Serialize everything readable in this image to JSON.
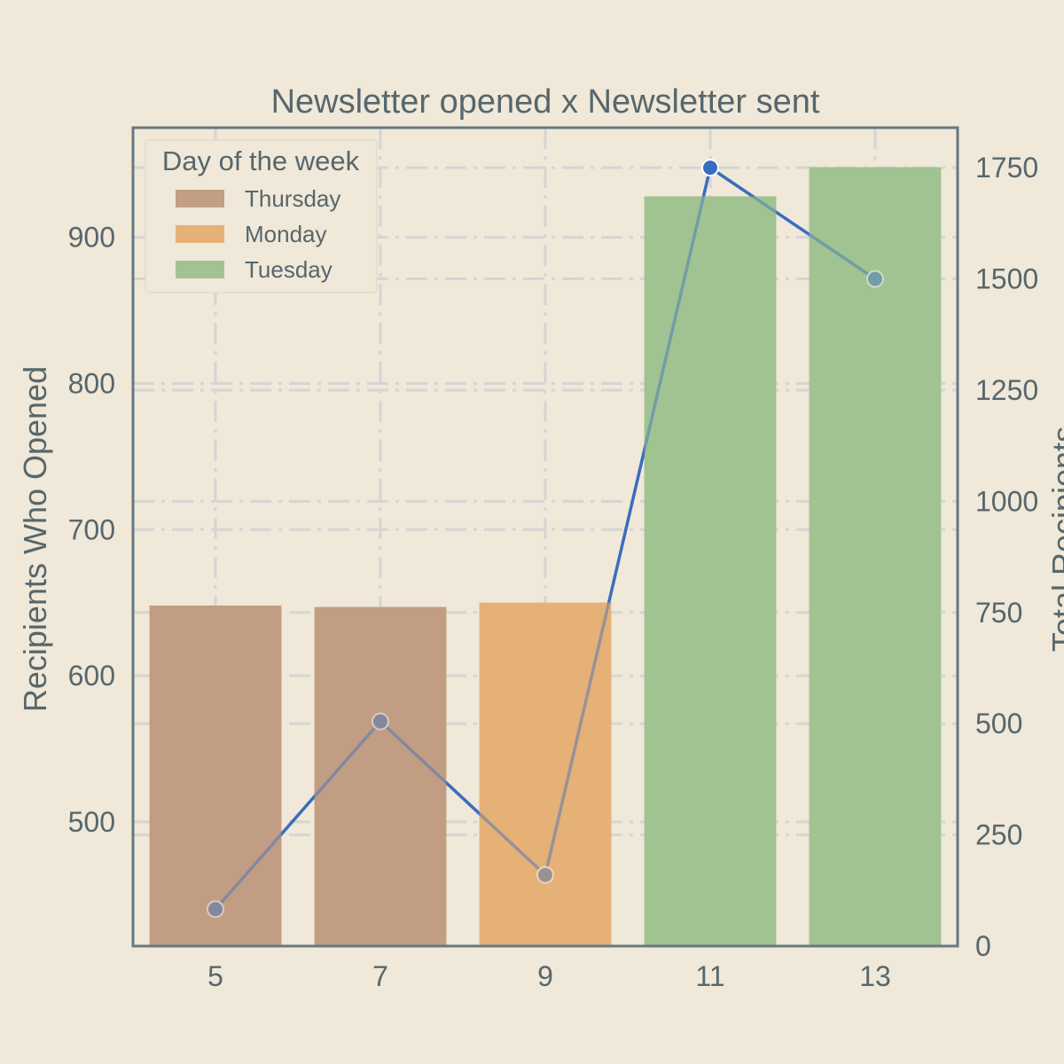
{
  "chart_data": {
    "type": "bar",
    "title": "Newsletter opened x Newsletter sent",
    "categories": [
      "5",
      "7",
      "9",
      "11",
      "13"
    ],
    "ylabel": "Recipients Who Opened",
    "y2label": "Total Recipients",
    "ylim": [
      415,
      975
    ],
    "y2lim": [
      0,
      1840
    ],
    "yticks": [
      500,
      600,
      700,
      800,
      900
    ],
    "y2ticks": [
      0,
      250,
      500,
      750,
      1000,
      1250,
      1500,
      1750
    ],
    "legend": {
      "title": "Day of the week",
      "placement": "top-left",
      "entries": [
        {
          "label": "Thursday",
          "color": "#c19e84"
        },
        {
          "label": "Monday",
          "color": "#e5b177"
        },
        {
          "label": "Tuesday",
          "color": "#a1c391"
        }
      ]
    },
    "bars": [
      {
        "x": "5",
        "value": 648,
        "group": "Thursday"
      },
      {
        "x": "7",
        "value": 647,
        "group": "Thursday"
      },
      {
        "x": "9",
        "value": 650,
        "group": "Monday"
      },
      {
        "x": "11",
        "value": 928,
        "group": "Tuesday"
      },
      {
        "x": "13",
        "value": 948,
        "group": "Tuesday"
      }
    ],
    "line": {
      "axis": "secondary",
      "color": "#3a6dbf",
      "values": [
        83,
        505,
        160,
        1750,
        1500
      ]
    },
    "grid": true
  }
}
